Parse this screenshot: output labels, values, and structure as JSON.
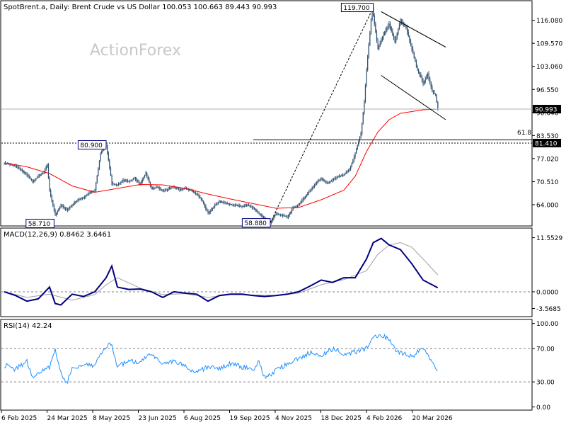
{
  "colors": {
    "background": "#ffffff",
    "frame": "#000000",
    "candles": "#2f4f6f",
    "ma_line": "#ff0000",
    "macd_line": "#000080",
    "signal_line": "#a0a0a0",
    "rsi_line": "#1e90ff",
    "grid_dash": "#808080",
    "label_bg": "#000000",
    "label_fg": "#ffffff",
    "watermark": "#c8c8c8"
  },
  "chart_data": [
    {
      "type": "candlestick",
      "title": "SpotBrent.a, Daily:  Brent Crude vs US Dollar  100.053 100.663 89.443 90.993",
      "watermark": "ActionForex",
      "ylim": [
        58.2,
        121.0
      ],
      "ytick_values": [
        116.08,
        109.57,
        103.06,
        96.55,
        90.04,
        83.53,
        77.02,
        70.51,
        64.0
      ],
      "ytick_labels": [
        "116.080",
        "109.570",
        "103.060",
        "96.550",
        "90.040",
        "83.530",
        "77.020",
        "70.510",
        "64.000"
      ],
      "x_labels": [
        "6 Feb 2025",
        "24 Mar 2025",
        "8 May 2025",
        "23 Jun 2025",
        "6 Aug 2025",
        "19 Sep 2025",
        "4 Nov 2025",
        "18 Dec 2025",
        "4 Feb 2026",
        "20 Mar 2026"
      ],
      "series": [
        {
          "label": "price",
          "x": [
            0,
            10,
            20,
            25,
            30,
            35,
            38,
            40,
            45,
            50,
            55,
            60,
            65,
            70,
            75,
            80,
            85,
            90,
            95,
            100,
            105,
            110,
            115,
            120,
            125,
            130,
            135,
            140,
            145,
            150,
            155,
            160,
            165,
            170,
            175,
            180,
            185,
            190,
            195,
            200,
            205,
            210,
            215,
            220,
            225,
            230,
            235,
            240,
            245,
            250,
            255,
            260,
            265,
            270,
            275,
            280,
            285,
            290,
            295,
            300,
            305,
            308,
            310,
            315,
            318,
            320,
            325,
            330,
            335,
            340,
            345,
            350,
            355,
            360,
            365,
            368,
            370,
            374,
            378,
            381,
            383
          ],
          "y": [
            75.8,
            74.9,
            72.5,
            70.5,
            72.0,
            73.2,
            75.3,
            68.0,
            61.0,
            64.0,
            62.5,
            64.0,
            65.5,
            66.0,
            67.5,
            68.0,
            78.5,
            80.9,
            70.0,
            69.5,
            71.0,
            70.5,
            71.5,
            69.8,
            73.0,
            68.5,
            69.0,
            67.8,
            68.5,
            69.0,
            68.2,
            68.7,
            68.0,
            67.0,
            65.0,
            61.5,
            63.5,
            65.0,
            64.5,
            64.0,
            63.8,
            63.5,
            64.0,
            63.0,
            61.5,
            60.0,
            58.9,
            61.5,
            61.0,
            60.5,
            63.0,
            64.0,
            66.0,
            68.0,
            70.0,
            71.5,
            70.0,
            71.0,
            72.0,
            72.5,
            74.0,
            76.5,
            78.5,
            84.0,
            93.0,
            102.0,
            119.7,
            108.0,
            112.0,
            115.0,
            110.0,
            116.0,
            114.0,
            108.0,
            102.0,
            100.0,
            98.0,
            101.0,
            96.0,
            95.0,
            90.99
          ]
        },
        {
          "label": "moving average",
          "x": [
            0,
            20,
            40,
            60,
            80,
            100,
            120,
            140,
            160,
            180,
            200,
            220,
            240,
            260,
            280,
            300,
            310,
            320,
            330,
            340,
            350,
            360,
            370,
            383
          ],
          "y": [
            75.8,
            74.7,
            72.8,
            69.3,
            67.5,
            68.6,
            69.7,
            69.6,
            68.6,
            67.0,
            65.6,
            64.3,
            63.0,
            63.2,
            65.4,
            68.1,
            72.0,
            79.0,
            84.5,
            88.0,
            89.8,
            90.3,
            90.8,
            91.0
          ]
        }
      ],
      "annotations": [
        {
          "text": "119.700",
          "x": 326,
          "y": 119.7
        },
        {
          "text": "80.900",
          "x": 90,
          "y": 80.9
        },
        {
          "text": "58.710",
          "x": 44,
          "y": 58.71
        },
        {
          "text": "58.880",
          "x": 235,
          "y": 58.88
        },
        {
          "text": "61.8",
          "x": 383,
          "y": 83.0
        }
      ],
      "current_price_label": "90.993",
      "current_price": 90.993,
      "level_label": "81.410",
      "level_price": 81.41,
      "fib_level": 82.3,
      "fib_start_x": 220,
      "fib_end_x": 383,
      "fib_line": {
        "x": [
          235,
          326
        ],
        "y": [
          58.88,
          119.7
        ]
      },
      "channel_upper": {
        "x": [
          333,
          390
        ],
        "y": [
          118.5,
          108.5
        ]
      },
      "channel_lower": {
        "x": [
          333,
          390
        ],
        "y": [
          100.5,
          88.0
        ]
      }
    },
    {
      "type": "line",
      "title": "MACD(12,26,9) 0.8462 3.6461",
      "ylim": [
        -5.0,
        13.0
      ],
      "ytick_values": [
        11.5529,
        0.0,
        -3.5685
      ],
      "ytick_labels": [
        "11.5529",
        "0.0000",
        "-3.5685"
      ],
      "zero_line": 0.0,
      "series": [
        {
          "label": "MACD",
          "x": [
            0,
            10,
            20,
            30,
            40,
            45,
            50,
            60,
            70,
            80,
            90,
            95,
            100,
            110,
            120,
            130,
            140,
            150,
            160,
            170,
            180,
            190,
            200,
            210,
            220,
            230,
            240,
            250,
            260,
            270,
            280,
            290,
            300,
            310,
            320,
            326,
            333,
            340,
            350,
            360,
            370,
            383
          ],
          "y": [
            0.0,
            -0.8,
            -2.0,
            -1.5,
            1.0,
            -2.5,
            -2.8,
            -0.5,
            -1.0,
            0.0,
            3.0,
            5.5,
            1.0,
            0.5,
            0.6,
            0.0,
            -1.2,
            0.0,
            -0.3,
            -0.5,
            -2.0,
            -0.8,
            -0.5,
            -0.5,
            -0.8,
            -1.0,
            -0.8,
            -0.5,
            0.0,
            1.2,
            2.5,
            2.0,
            3.0,
            3.0,
            7.0,
            10.5,
            11.4,
            10.0,
            9.0,
            6.0,
            2.5,
            0.85
          ]
        },
        {
          "label": "Signal",
          "x": [
            0,
            20,
            40,
            60,
            80,
            90,
            100,
            120,
            140,
            160,
            180,
            200,
            220,
            240,
            260,
            280,
            300,
            320,
            330,
            340,
            350,
            360,
            370,
            383
          ],
          "y": [
            0.0,
            -1.2,
            -0.5,
            -1.8,
            -0.6,
            1.5,
            3.0,
            0.8,
            -0.6,
            -0.4,
            -1.2,
            -0.6,
            -0.7,
            -0.8,
            -0.3,
            1.5,
            2.6,
            4.5,
            8.0,
            10.0,
            10.5,
            9.5,
            7.0,
            3.6
          ]
        }
      ]
    },
    {
      "type": "line",
      "title": "RSI(14) 42.24",
      "ylim": [
        -3.0,
        104.0
      ],
      "ytick_values": [
        100.0,
        70.0,
        30.0,
        0.0
      ],
      "ytick_labels": [
        "100.00",
        "70.00",
        "30.00",
        "0.00"
      ],
      "levels": [
        70,
        30
      ],
      "series": [
        {
          "label": "RSI",
          "x": [
            0,
            10,
            20,
            25,
            30,
            40,
            45,
            50,
            55,
            60,
            70,
            80,
            88,
            92,
            95,
            100,
            110,
            120,
            125,
            130,
            140,
            150,
            160,
            170,
            180,
            190,
            200,
            210,
            220,
            225,
            230,
            235,
            240,
            250,
            260,
            270,
            280,
            290,
            300,
            310,
            320,
            326,
            330,
            340,
            345,
            350,
            360,
            370,
            378,
            383
          ],
          "y": [
            50,
            45,
            55,
            35,
            40,
            48,
            70,
            40,
            28,
            45,
            52,
            50,
            68,
            76,
            75,
            48,
            55,
            52,
            60,
            62,
            50,
            56,
            48,
            42,
            48,
            45,
            52,
            48,
            45,
            55,
            35,
            38,
            44,
            52,
            58,
            65,
            60,
            70,
            62,
            66,
            70,
            82,
            86,
            82,
            70,
            65,
            60,
            72,
            55,
            42.24
          ]
        }
      ]
    }
  ]
}
